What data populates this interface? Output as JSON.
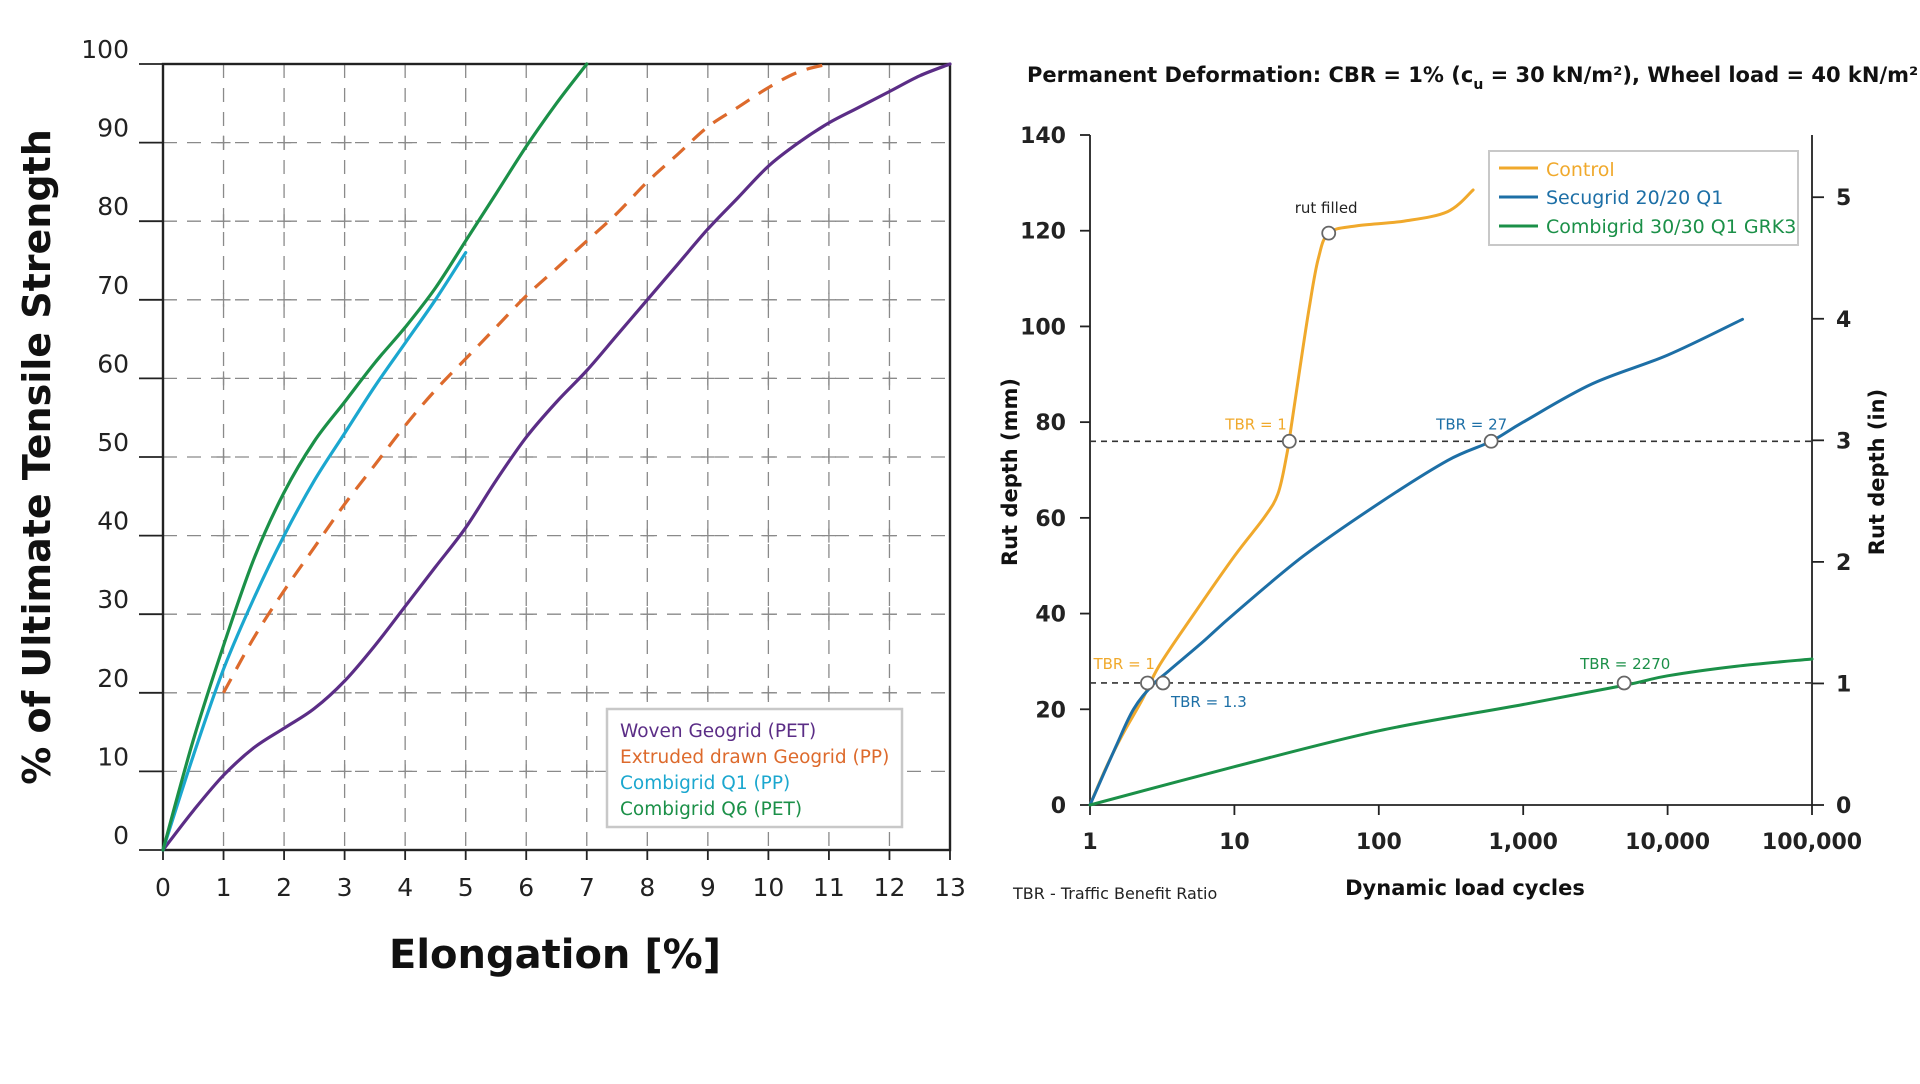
{
  "chart_data": [
    {
      "type": "line",
      "title": "",
      "xlabel": "Elongation [%]",
      "ylabel": "% of Ultimate Tensile Strength",
      "xlim": [
        0,
        13
      ],
      "ylim": [
        0,
        100
      ],
      "x_ticks": [
        "0",
        "1",
        "2",
        "3",
        "4",
        "5",
        "6",
        "7",
        "8",
        "9",
        "10",
        "11",
        "12",
        "13"
      ],
      "y_ticks": [
        "0",
        "10",
        "20",
        "30",
        "40",
        "50",
        "60",
        "70",
        "80",
        "90",
        "100"
      ],
      "grid": true,
      "legend_position": "bottom-right",
      "series": [
        {
          "name": "Woven Geogrid (PET)",
          "color": "#5b2d86",
          "dash": false,
          "points": [
            [
              0,
              0
            ],
            [
              0.5,
              5
            ],
            [
              1,
              9.5
            ],
            [
              1.5,
              13
            ],
            [
              2,
              15.5
            ],
            [
              2.5,
              18
            ],
            [
              3,
              21.5
            ],
            [
              3.5,
              26
            ],
            [
              4,
              31
            ],
            [
              4.5,
              36
            ],
            [
              5,
              41
            ],
            [
              5.5,
              47
            ],
            [
              6,
              52.5
            ],
            [
              6.5,
              57
            ],
            [
              7,
              61
            ],
            [
              7.5,
              65.5
            ],
            [
              8,
              70
            ],
            [
              8.5,
              74.5
            ],
            [
              9,
              79
            ],
            [
              9.5,
              83
            ],
            [
              10,
              87
            ],
            [
              10.5,
              90
            ],
            [
              11,
              92.5
            ],
            [
              11.5,
              94.5
            ],
            [
              12,
              96.5
            ],
            [
              12.5,
              98.5
            ],
            [
              13,
              100
            ]
          ]
        },
        {
          "name": "Extruded drawn Geogrid (PP)",
          "color": "#dd6a2c",
          "dash": true,
          "points": [
            [
              1,
              20
            ],
            [
              1.5,
              27
            ],
            [
              2,
              33
            ],
            [
              2.5,
              38.5
            ],
            [
              3,
              44
            ],
            [
              3.5,
              49
            ],
            [
              4,
              54
            ],
            [
              4.5,
              58.5
            ],
            [
              5,
              62.5
            ],
            [
              5.5,
              66.5
            ],
            [
              6,
              70.5
            ],
            [
              6.5,
              74
            ],
            [
              7,
              77.5
            ],
            [
              7.5,
              81
            ],
            [
              8,
              85
            ],
            [
              8.5,
              88.5
            ],
            [
              9,
              92
            ],
            [
              9.5,
              94.5
            ],
            [
              10,
              97
            ],
            [
              10.5,
              99
            ],
            [
              11,
              100
            ]
          ]
        },
        {
          "name": "Combigrid Q1 (PP)",
          "color": "#1ba7cf",
          "dash": false,
          "points": [
            [
              0,
              0
            ],
            [
              0.5,
              12
            ],
            [
              1,
              23
            ],
            [
              1.5,
              32
            ],
            [
              2,
              40
            ],
            [
              2.5,
              47
            ],
            [
              3,
              53
            ],
            [
              3.5,
              59
            ],
            [
              4,
              64.5
            ],
            [
              4.5,
              70
            ],
            [
              5,
              76
            ]
          ]
        },
        {
          "name": "Combigrid Q6 (PET)",
          "color": "#1b9048",
          "dash": false,
          "points": [
            [
              0,
              0
            ],
            [
              0.5,
              14
            ],
            [
              1,
              26
            ],
            [
              1.5,
              37
            ],
            [
              2,
              45.5
            ],
            [
              2.5,
              52
            ],
            [
              3,
              57
            ],
            [
              3.5,
              62
            ],
            [
              4,
              66.5
            ],
            [
              4.5,
              71.5
            ],
            [
              5,
              77.5
            ],
            [
              5.5,
              83.5
            ],
            [
              6,
              89.5
            ],
            [
              6.5,
              95
            ],
            [
              7,
              100
            ]
          ]
        }
      ]
    },
    {
      "type": "line",
      "title_prefix": "Permanent Deformation: CBR = 1% (c",
      "title_sub": "u",
      "title_middle": " = 30 kN/m²), Wheel load = 40 kN/m²",
      "xlabel": "Dynamic load cycles",
      "ylabel": "Rut depth (mm)",
      "y2label": "Rut depth (in)",
      "footnote": "TBR - Traffic Benefit Ratio",
      "xscale": "log",
      "xlim": [
        1,
        100000
      ],
      "ylim": [
        0,
        140
      ],
      "y2lim": [
        0,
        5.5118
      ],
      "x_ticks": [
        {
          "v": 1,
          "l": "1"
        },
        {
          "v": 10,
          "l": "10"
        },
        {
          "v": 100,
          "l": "100"
        },
        {
          "v": 1000,
          "l": "1,000"
        },
        {
          "v": 10000,
          "l": "10,000"
        },
        {
          "v": 100000,
          "l": "100,000"
        }
      ],
      "y_ticks": [
        "0",
        "20",
        "40",
        "60",
        "80",
        "100",
        "120",
        "140"
      ],
      "y2_ticks": [
        "0",
        "1",
        "2",
        "3",
        "4",
        "5"
      ],
      "legend_position": "top-right",
      "series": [
        {
          "name": "Control",
          "color": "#f0a92c",
          "points": [
            [
              1,
              0
            ],
            [
              1.3,
              8
            ],
            [
              1.7,
              15
            ],
            [
              2.3,
              22
            ],
            [
              3,
              29
            ],
            [
              5,
              39
            ],
            [
              10,
              52
            ],
            [
              16,
              60
            ],
            [
              20,
              65
            ],
            [
              23,
              73
            ],
            [
              25,
              80
            ],
            [
              28,
              90
            ],
            [
              33,
              104
            ],
            [
              38,
              114
            ],
            [
              45,
              119.5
            ],
            [
              70,
              121
            ],
            [
              150,
              122
            ],
            [
              300,
              124
            ],
            [
              450,
              128.5
            ]
          ]
        },
        {
          "name": "Secugrid 20/20 Q1",
          "color": "#1d6fa6",
          "points": [
            [
              1,
              0
            ],
            [
              1.5,
              12
            ],
            [
              2,
              20
            ],
            [
              2.7,
              25
            ],
            [
              3.5,
              28
            ],
            [
              6,
              34
            ],
            [
              10,
              40
            ],
            [
              30,
              52
            ],
            [
              100,
              63
            ],
            [
              300,
              72
            ],
            [
              600,
              76
            ],
            [
              1000,
              80
            ],
            [
              3000,
              88
            ],
            [
              10000,
              94
            ],
            [
              33000,
              101.5
            ]
          ]
        },
        {
          "name": "Combigrid 30/30 Q1 GRK3",
          "color": "#1b9048",
          "points": [
            [
              1,
              0
            ],
            [
              10,
              8
            ],
            [
              100,
              15.5
            ],
            [
              1000,
              21
            ],
            [
              5000,
              25
            ],
            [
              10000,
              27
            ],
            [
              30000,
              29
            ],
            [
              100000,
              30.5
            ]
          ]
        }
      ],
      "reference_lines": [
        76,
        25.5
      ],
      "markers": [
        {
          "x": 2.5,
          "y": 25.5,
          "label": "TBR = 1",
          "color": "#f0a92c"
        },
        {
          "x": 3.2,
          "y": 25.5,
          "label": "TBR = 1.3",
          "color": "#1d6fa6"
        },
        {
          "x": 24,
          "y": 76,
          "label": "TBR = 1",
          "color": "#f0a92c"
        },
        {
          "x": 600,
          "y": 76,
          "label": "TBR = 27",
          "color": "#1d6fa6"
        },
        {
          "x": 5000,
          "y": 25.5,
          "label": "TBR = 2270",
          "color": "#1b9048"
        },
        {
          "x": 45,
          "y": 119.5,
          "label": "rut filled",
          "color": "#222222"
        }
      ]
    }
  ]
}
